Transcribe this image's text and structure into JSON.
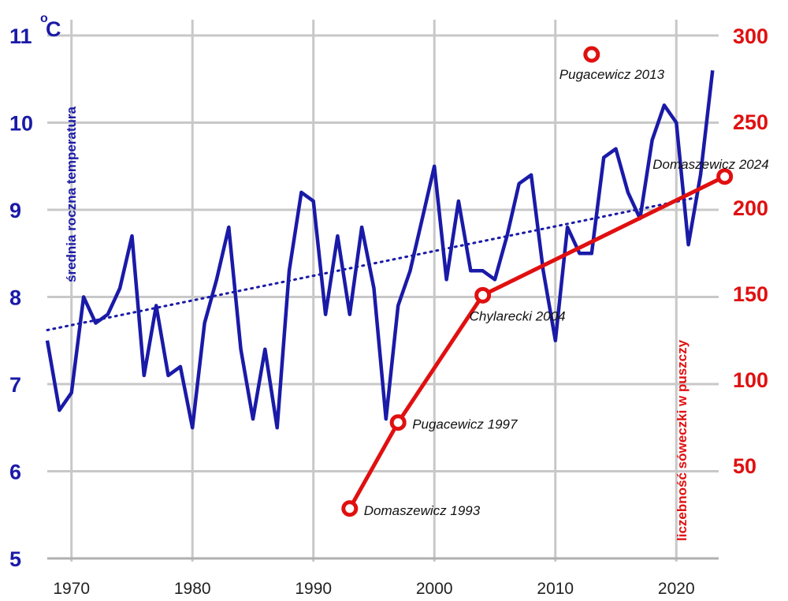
{
  "chart_data": {
    "type": "line",
    "title": "",
    "xlabel": "",
    "x_ticks": [
      "1970",
      "1980",
      "1990",
      "2000",
      "2010",
      "2020"
    ],
    "xlim": [
      1968,
      2023.5
    ],
    "grid": true,
    "left_axis": {
      "label": "średnia roczna temperatura",
      "unit": "C",
      "unit_prefix": "o",
      "ticks": [
        "5",
        "6",
        "7",
        "8",
        "9",
        "10",
        "11"
      ],
      "ylim": [
        5,
        11
      ],
      "color": "#1a1aa8"
    },
    "right_axis": {
      "label": "liczebność sóweczki w puszczy",
      "ticks": [
        "50",
        "100",
        "150",
        "200",
        "250",
        "300"
      ],
      "ylim": [
        -4,
        300
      ],
      "color": "#e01010"
    },
    "series": [
      {
        "axis": "left",
        "style": "solid",
        "color": "#1a1aa8",
        "x": [
          1968,
          1969,
          1970,
          1971,
          1972,
          1973,
          1974,
          1975,
          1976,
          1977,
          1978,
          1979,
          1980,
          1981,
          1982,
          1983,
          1984,
          1985,
          1986,
          1987,
          1988,
          1989,
          1990,
          1991,
          1992,
          1993,
          1994,
          1995,
          1996,
          1997,
          1998,
          1999,
          2000,
          2001,
          2002,
          2003,
          2004,
          2005,
          2006,
          2007,
          2008,
          2009,
          2010,
          2011,
          2012,
          2013,
          2014,
          2015,
          2016,
          2017,
          2018,
          2019,
          2020,
          2021,
          2022,
          2023
        ],
        "values": [
          7.5,
          6.7,
          6.9,
          8.0,
          7.7,
          7.8,
          8.1,
          8.7,
          7.1,
          7.9,
          7.1,
          7.2,
          6.5,
          7.7,
          8.2,
          8.8,
          7.4,
          6.6,
          7.4,
          6.5,
          8.3,
          9.2,
          9.1,
          7.8,
          8.7,
          7.8,
          8.8,
          8.1,
          6.6,
          7.9,
          8.3,
          8.9,
          9.5,
          8.2,
          9.1,
          8.3,
          8.3,
          8.2,
          8.7,
          9.3,
          9.4,
          8.3,
          7.5,
          8.8,
          8.5,
          8.5,
          9.6,
          9.7,
          9.2,
          8.9,
          9.8,
          10.2,
          10.0,
          8.6,
          9.4,
          10.6
        ]
      },
      {
        "axis": "left",
        "style": "dotted",
        "name": "",
        "color": "#1a1aa8",
        "x": [
          1968,
          2022
        ],
        "values": [
          7.62,
          9.15
        ]
      },
      {
        "axis": "right",
        "style": "solid-markers",
        "color": "#e01010",
        "x": [
          1993,
          1997,
          2004,
          2024
        ],
        "values": [
          25,
          75,
          149,
          218
        ],
        "labels": [
          "Domaszewicz 1993",
          "Pugacewicz 1997",
          "Chylarecki 2004",
          "Domaszewicz 2024"
        ]
      },
      {
        "axis": "right",
        "style": "marker-only",
        "color": "#e01010",
        "x": [
          2013
        ],
        "values": [
          289
        ],
        "labels": [
          "Pugacewicz 2013"
        ]
      }
    ]
  }
}
